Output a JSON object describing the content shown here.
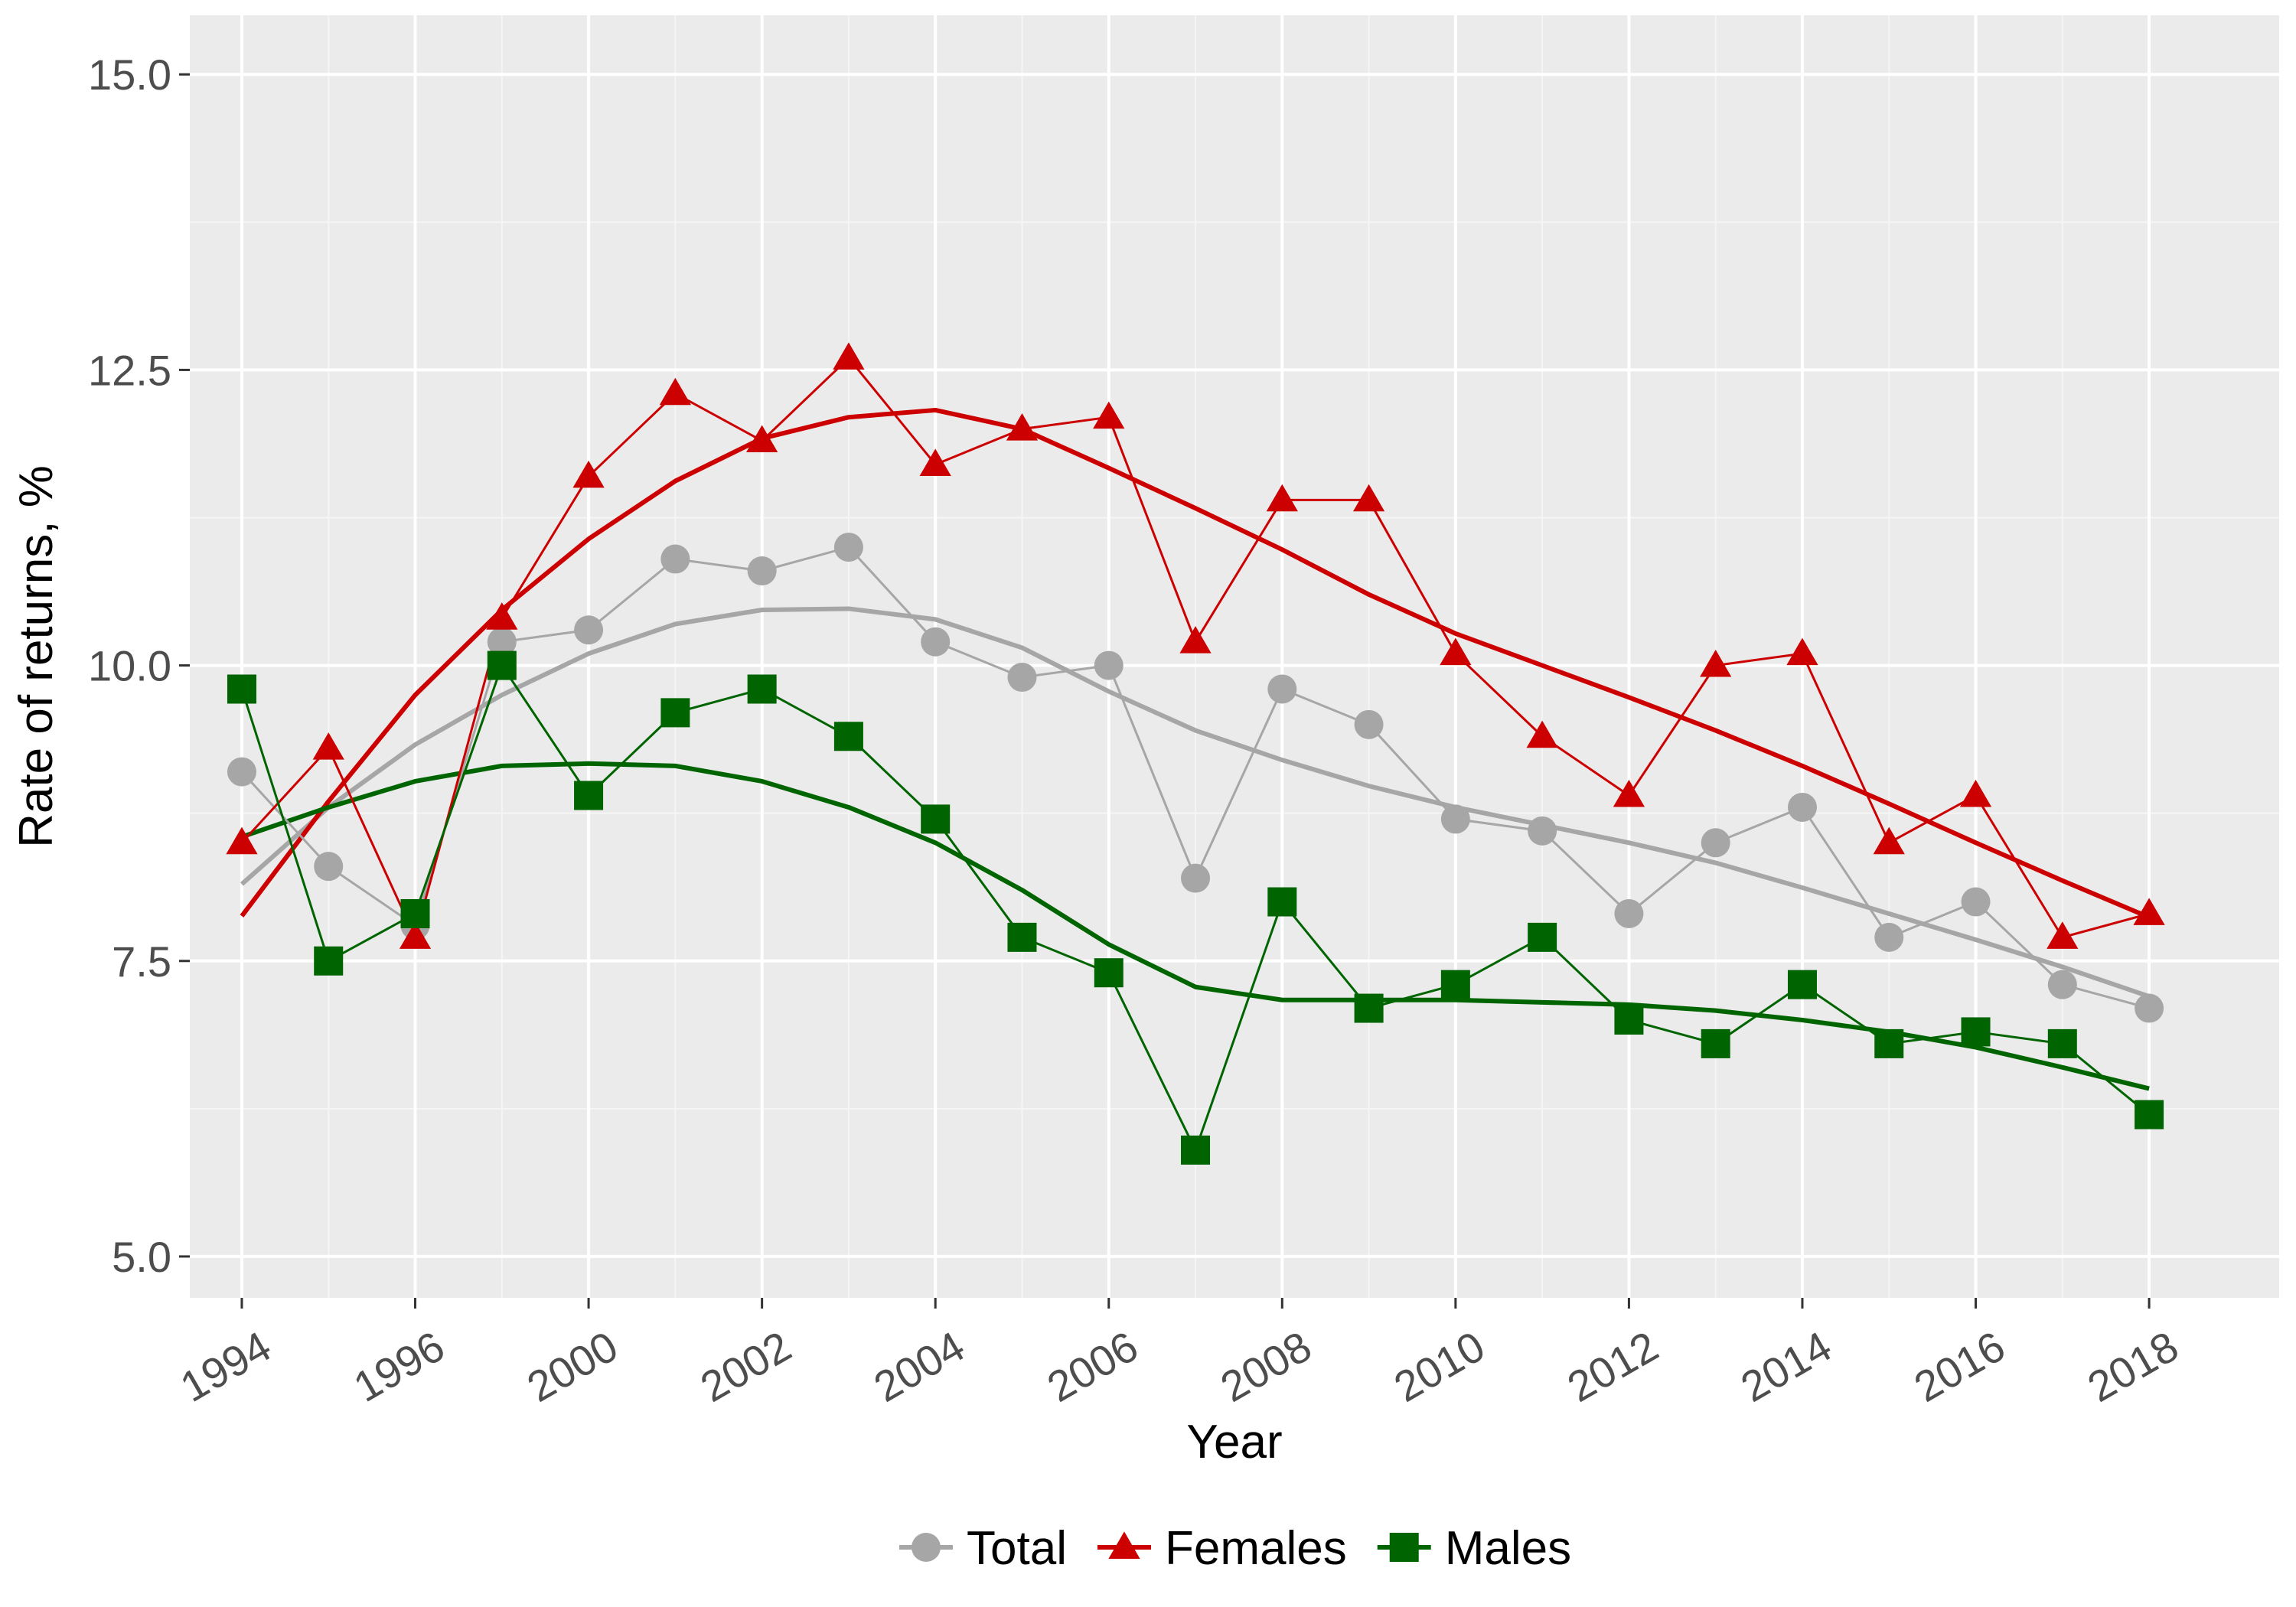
{
  "chart_data": {
    "type": "line",
    "xlabel": "Year",
    "ylabel": "Rate of returns, %",
    "xlim": [
      1993.4,
      2018.5
    ],
    "ylim": [
      4.65,
      15.5
    ],
    "x_ticks": [
      "1994",
      "1996",
      "2000",
      "2002",
      "2004",
      "2006",
      "2008",
      "2010",
      "2012",
      "2014",
      "2016",
      "2018"
    ],
    "y_ticks": [
      "5.0",
      "7.5",
      "10.0",
      "12.5",
      "15.0"
    ],
    "legend_position": "bottom",
    "grid": true,
    "x": [
      1994,
      1995,
      1996,
      1997,
      1998,
      1999,
      2000,
      2001,
      2002,
      2003,
      2004,
      2005,
      2006,
      2007,
      2008,
      2009,
      2010,
      2011,
      2012,
      2013,
      2014,
      2015,
      2016,
      2017
    ],
    "series": [
      {
        "name": "Total",
        "color": "#a6a6a6",
        "marker": "circle",
        "values": [
          9.1,
          8.3,
          7.8,
          10.2,
          10.3,
          10.9,
          10.8,
          11.0,
          10.2,
          9.9,
          10.0,
          8.2,
          9.8,
          9.5,
          8.7,
          8.6,
          7.9,
          8.5,
          8.8,
          7.7,
          8.0,
          7.3,
          7.1,
          null
        ],
        "trend": [
          8.15,
          8.8,
          9.33,
          9.75,
          10.1,
          10.35,
          10.47,
          10.48,
          10.39,
          10.15,
          9.78,
          9.45,
          9.2,
          8.98,
          8.8,
          8.65,
          8.5,
          8.33,
          8.12,
          7.9,
          7.68,
          7.45,
          7.2,
          null
        ]
      },
      {
        "name": "Females",
        "color": "#cc0000",
        "marker": "triangle",
        "values": [
          8.5,
          9.3,
          7.7,
          10.4,
          11.6,
          12.3,
          11.9,
          12.6,
          11.7,
          12.0,
          12.1,
          10.2,
          11.4,
          11.4,
          10.1,
          9.4,
          8.9,
          10.0,
          10.1,
          8.5,
          8.9,
          7.7,
          7.9,
          null
        ],
        "trend": [
          7.88,
          8.85,
          9.75,
          10.47,
          11.07,
          11.56,
          11.92,
          12.1,
          12.16,
          12.0,
          11.67,
          11.33,
          10.98,
          10.6,
          10.27,
          10.0,
          9.73,
          9.45,
          9.15,
          8.83,
          8.5,
          8.18,
          7.87,
          null
        ]
      },
      {
        "name": "Males",
        "color": "#006400",
        "marker": "square",
        "values": [
          9.8,
          7.5,
          7.9,
          10.0,
          8.9,
          9.6,
          9.8,
          9.4,
          8.7,
          7.7,
          7.4,
          5.9,
          8.0,
          7.1,
          7.3,
          7.7,
          7.0,
          6.8,
          7.3,
          6.8,
          6.9,
          6.8,
          6.2,
          null
        ],
        "trend": [
          8.55,
          8.8,
          9.02,
          9.15,
          9.17,
          9.15,
          9.02,
          8.8,
          8.5,
          8.1,
          7.64,
          7.28,
          7.17,
          7.17,
          7.17,
          7.15,
          7.13,
          7.08,
          7.0,
          6.9,
          6.77,
          6.6,
          6.42,
          null
        ]
      }
    ]
  }
}
